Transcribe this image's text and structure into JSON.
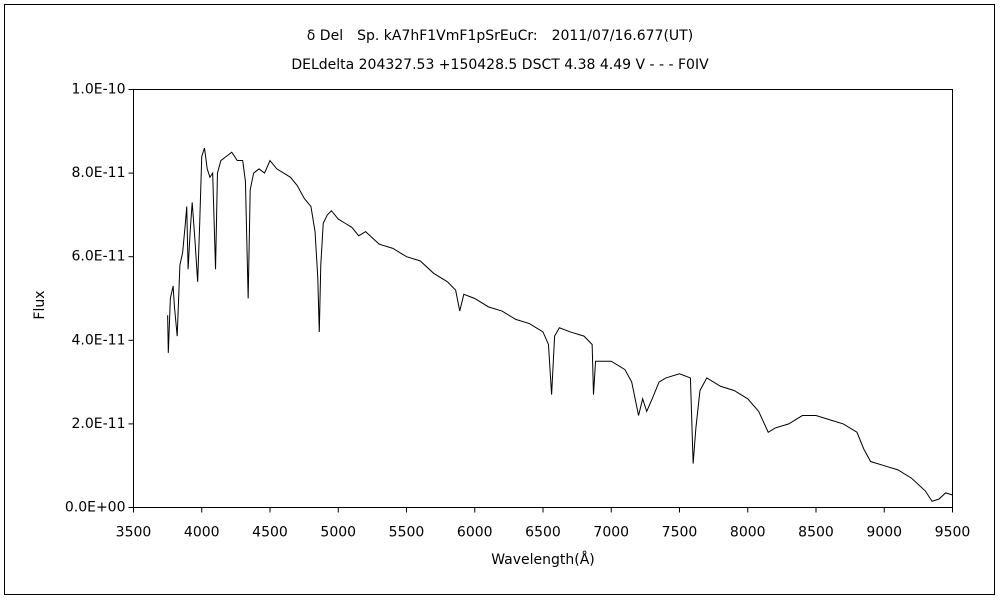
{
  "chart_data": {
    "type": "line",
    "title": "δ Del　Sp. kA7hF1VmF1pSrEuCr:　2011/07/16.677(UT)",
    "subtitle": "DELdelta 204327.53 +150428.5 DSCT 4.38 4.49 V - - - F0IV",
    "x_label": "Wavelength(Å)",
    "y_label": "Flux",
    "x": [
      3750,
      3755,
      3770,
      3790,
      3800,
      3820,
      3840,
      3860,
      3880,
      3890,
      3900,
      3915,
      3930,
      3950,
      3970,
      3985,
      4000,
      4020,
      4040,
      4060,
      4080,
      4101,
      4115,
      4140,
      4180,
      4220,
      4260,
      4300,
      4320,
      4340,
      4355,
      4380,
      4420,
      4460,
      4500,
      4550,
      4600,
      4650,
      4700,
      4750,
      4800,
      4830,
      4850,
      4861,
      4872,
      4890,
      4920,
      4950,
      5000,
      5050,
      5100,
      5150,
      5200,
      5300,
      5400,
      5500,
      5600,
      5700,
      5800,
      5860,
      5890,
      5920,
      6000,
      6100,
      6200,
      6300,
      6400,
      6500,
      6540,
      6563,
      6585,
      6620,
      6700,
      6800,
      6860,
      6870,
      6885,
      6950,
      7000,
      7100,
      7150,
      7200,
      7230,
      7260,
      7300,
      7350,
      7400,
      7500,
      7580,
      7600,
      7620,
      7650,
      7700,
      7800,
      7900,
      8000,
      8080,
      8150,
      8200,
      8300,
      8400,
      8500,
      8600,
      8700,
      8800,
      8850,
      8900,
      9000,
      9100,
      9200,
      9300,
      9350,
      9400,
      9450,
      9500
    ],
    "series": [
      {
        "color": "#000000",
        "values": [
          4.6e-11,
          3.7e-11,
          5e-11,
          5.3e-11,
          4.8e-11,
          4.1e-11,
          5.8e-11,
          6.1e-11,
          6.8e-11,
          7.2e-11,
          5.7e-11,
          6.6e-11,
          7.3e-11,
          6.4e-11,
          5.4e-11,
          6.8e-11,
          8.4e-11,
          8.6e-11,
          8.1e-11,
          7.9e-11,
          8e-11,
          5.7e-11,
          8e-11,
          8.3e-11,
          8.4e-11,
          8.5e-11,
          8.3e-11,
          8.3e-11,
          7.8e-11,
          5e-11,
          7.6e-11,
          8e-11,
          8.1e-11,
          8e-11,
          8.3e-11,
          8.1e-11,
          8e-11,
          7.9e-11,
          7.7e-11,
          7.4e-11,
          7.2e-11,
          6.6e-11,
          5.5e-11,
          4.2e-11,
          5.8e-11,
          6.8e-11,
          7e-11,
          7.1e-11,
          6.9e-11,
          6.8e-11,
          6.7e-11,
          6.5e-11,
          6.6e-11,
          6.3e-11,
          6.2e-11,
          6e-11,
          5.9e-11,
          5.6e-11,
          5.4e-11,
          5.2e-11,
          4.7e-11,
          5.1e-11,
          5e-11,
          4.8e-11,
          4.7e-11,
          4.5e-11,
          4.4e-11,
          4.2e-11,
          3.9e-11,
          2.7e-11,
          4.1e-11,
          4.3e-11,
          4.2e-11,
          4.1e-11,
          3.9e-11,
          2.7e-11,
          3.5e-11,
          3.5e-11,
          3.5e-11,
          3.3e-11,
          3e-11,
          2.2e-11,
          2.6e-11,
          2.3e-11,
          2.6e-11,
          3e-11,
          3.1e-11,
          3.2e-11,
          3.1e-11,
          1.05e-11,
          1.9e-11,
          2.8e-11,
          3.1e-11,
          2.9e-11,
          2.8e-11,
          2.6e-11,
          2.3e-11,
          1.8e-11,
          1.9e-11,
          2e-11,
          2.2e-11,
          2.2e-11,
          2.1e-11,
          2e-11,
          1.8e-11,
          1.4e-11,
          1.1e-11,
          1e-11,
          9e-12,
          7e-12,
          4e-12,
          1.5e-12,
          2e-12,
          3.5e-12,
          3e-12
        ]
      }
    ],
    "xlim": [
      3500,
      9500
    ],
    "xticks": [
      3500,
      4000,
      4500,
      5000,
      5500,
      6000,
      6500,
      7000,
      7500,
      8000,
      8500,
      9000,
      9500
    ],
    "ylim": [
      0,
      1e-10
    ],
    "yticks": [
      {
        "value": 0,
        "label": "0.0E+00"
      },
      {
        "value": 2e-11,
        "label": "2.0E-11"
      },
      {
        "value": 4e-11,
        "label": "4.0E-11"
      },
      {
        "value": 6e-11,
        "label": "6.0E-11"
      },
      {
        "value": 8e-11,
        "label": "8.0E-11"
      },
      {
        "value": 1e-10,
        "label": "1.0E-10"
      }
    ],
    "grid": false
  }
}
